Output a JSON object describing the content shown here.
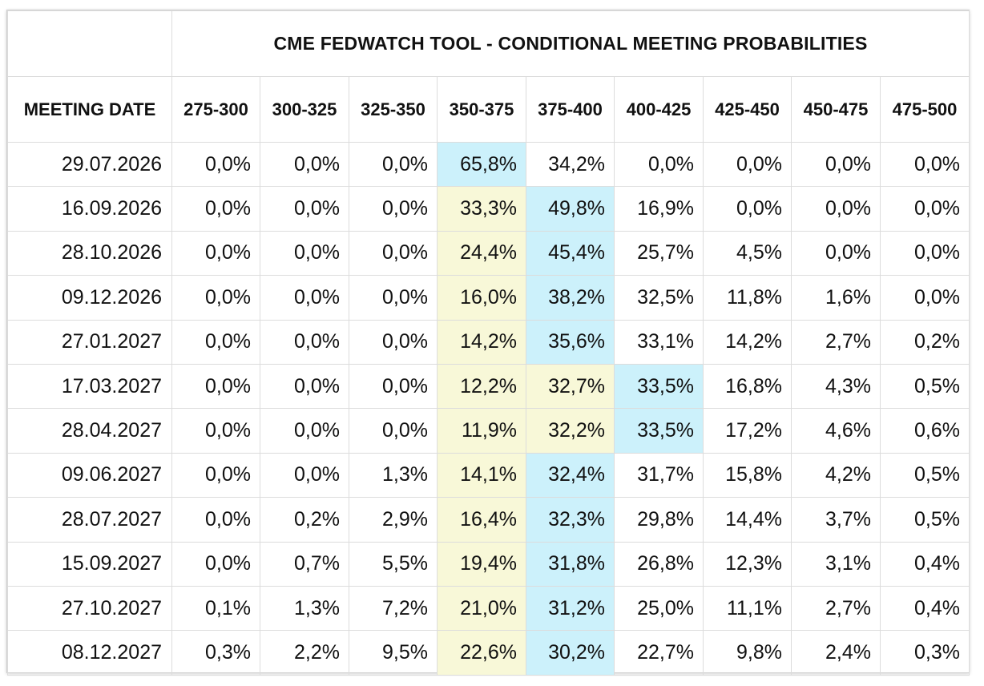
{
  "chart_data": {
    "type": "table",
    "title": "CME FEDWATCH TOOL - CONDITIONAL MEETING PROBABILITIES",
    "row_header": "MEETING DATE",
    "columns": [
      "275-300",
      "300-325",
      "325-350",
      "350-375",
      "375-400",
      "400-425",
      "425-450",
      "450-475",
      "475-500"
    ],
    "rows": [
      {
        "date": "29.07.2026",
        "values": [
          "0,0%",
          "0,0%",
          "0,0%",
          "65,8%",
          "34,2%",
          "0,0%",
          "0,0%",
          "0,0%",
          "0,0%"
        ],
        "highlight": {
          "blue": [
            3
          ],
          "yellow": []
        }
      },
      {
        "date": "16.09.2026",
        "values": [
          "0,0%",
          "0,0%",
          "0,0%",
          "33,3%",
          "49,8%",
          "16,9%",
          "0,0%",
          "0,0%",
          "0,0%"
        ],
        "highlight": {
          "blue": [
            4
          ],
          "yellow": [
            3
          ]
        }
      },
      {
        "date": "28.10.2026",
        "values": [
          "0,0%",
          "0,0%",
          "0,0%",
          "24,4%",
          "45,4%",
          "25,7%",
          "4,5%",
          "0,0%",
          "0,0%"
        ],
        "highlight": {
          "blue": [
            4
          ],
          "yellow": [
            3
          ]
        }
      },
      {
        "date": "09.12.2026",
        "values": [
          "0,0%",
          "0,0%",
          "0,0%",
          "16,0%",
          "38,2%",
          "32,5%",
          "11,8%",
          "1,6%",
          "0,0%"
        ],
        "highlight": {
          "blue": [
            4
          ],
          "yellow": [
            3
          ]
        }
      },
      {
        "date": "27.01.2027",
        "values": [
          "0,0%",
          "0,0%",
          "0,0%",
          "14,2%",
          "35,6%",
          "33,1%",
          "14,2%",
          "2,7%",
          "0,2%"
        ],
        "highlight": {
          "blue": [
            4
          ],
          "yellow": [
            3
          ]
        }
      },
      {
        "date": "17.03.2027",
        "values": [
          "0,0%",
          "0,0%",
          "0,0%",
          "12,2%",
          "32,7%",
          "33,5%",
          "16,8%",
          "4,3%",
          "0,5%"
        ],
        "highlight": {
          "blue": [
            5
          ],
          "yellow": [
            3,
            4
          ]
        }
      },
      {
        "date": "28.04.2027",
        "values": [
          "0,0%",
          "0,0%",
          "0,0%",
          "11,9%",
          "32,2%",
          "33,5%",
          "17,2%",
          "4,6%",
          "0,6%"
        ],
        "highlight": {
          "blue": [
            5
          ],
          "yellow": [
            3,
            4
          ]
        }
      },
      {
        "date": "09.06.2027",
        "values": [
          "0,0%",
          "0,0%",
          "1,3%",
          "14,1%",
          "32,4%",
          "31,7%",
          "15,8%",
          "4,2%",
          "0,5%"
        ],
        "highlight": {
          "blue": [
            4
          ],
          "yellow": [
            3
          ]
        }
      },
      {
        "date": "28.07.2027",
        "values": [
          "0,0%",
          "0,2%",
          "2,9%",
          "16,4%",
          "32,3%",
          "29,8%",
          "14,4%",
          "3,7%",
          "0,5%"
        ],
        "highlight": {
          "blue": [
            4
          ],
          "yellow": [
            3
          ]
        }
      },
      {
        "date": "15.09.2027",
        "values": [
          "0,0%",
          "0,7%",
          "5,5%",
          "19,4%",
          "31,8%",
          "26,8%",
          "12,3%",
          "3,1%",
          "0,4%"
        ],
        "highlight": {
          "blue": [
            4
          ],
          "yellow": [
            3
          ]
        }
      },
      {
        "date": "27.10.2027",
        "values": [
          "0,1%",
          "1,3%",
          "7,2%",
          "21,0%",
          "31,2%",
          "25,0%",
          "11,1%",
          "2,7%",
          "0,4%"
        ],
        "highlight": {
          "blue": [
            4
          ],
          "yellow": [
            3
          ]
        }
      },
      {
        "date": "08.12.2027",
        "values": [
          "0,3%",
          "2,2%",
          "9,5%",
          "22,6%",
          "30,2%",
          "22,7%",
          "9,8%",
          "2,4%",
          "0,3%"
        ],
        "highlight": {
          "blue": [
            4
          ],
          "yellow": [
            3
          ]
        }
      }
    ],
    "colors": {
      "blue_highlight": "#ccf1fb",
      "yellow_highlight": "#f8f8d8",
      "border": "#dcdcdc",
      "text": "#111111"
    }
  }
}
